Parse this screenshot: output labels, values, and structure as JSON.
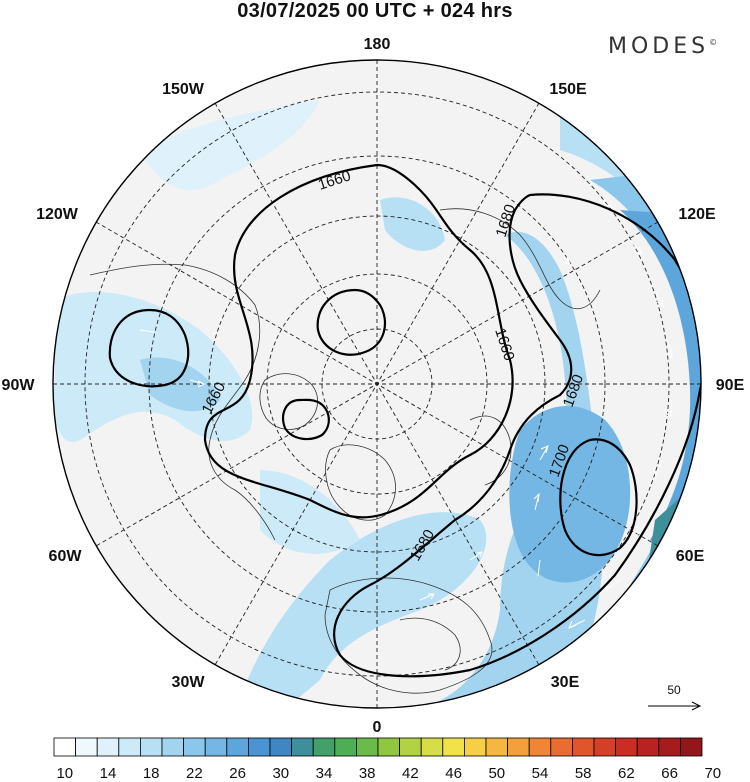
{
  "header": {
    "title": "03/07/2025  00 UTC  + 024 hrs",
    "brand": "MODES",
    "brand_mark": "©"
  },
  "map": {
    "projection": "north-polar-stereographic",
    "longitude_labels": [
      "180",
      "150E",
      "120E",
      "90E",
      "60E",
      "30E",
      "0",
      "30W",
      "60W",
      "90W",
      "120W",
      "150W"
    ],
    "contour_labels": [
      "1660",
      "1680",
      "1660",
      "1660",
      "1680",
      "1700",
      "1680"
    ],
    "reference_vector_label": "50",
    "colors": {
      "land_fill": "#f0f0f0",
      "coastline": "#333333",
      "contour": "#000000",
      "wind_arrow": "#ffffff"
    }
  },
  "colorbar": {
    "levels": [
      10,
      12,
      14,
      16,
      18,
      20,
      22,
      24,
      26,
      28,
      30,
      32,
      34,
      36,
      38,
      40,
      42,
      44,
      46,
      48,
      50,
      52,
      54,
      56,
      58,
      60,
      62,
      64,
      66,
      68,
      70
    ],
    "labels": [
      "10",
      "14",
      "18",
      "22",
      "26",
      "30",
      "34",
      "38",
      "42",
      "46",
      "50",
      "54",
      "58",
      "62",
      "66",
      "70"
    ],
    "colors": [
      "#ffffff",
      "#eef8fd",
      "#dff2fb",
      "#cdeaf8",
      "#b8e0f5",
      "#a2d4f0",
      "#8bc6eb",
      "#74b7e4",
      "#5da6dc",
      "#4a94d1",
      "#3f86c5",
      "#3f8f9a",
      "#44a06a",
      "#4eae55",
      "#6abb4a",
      "#8fc743",
      "#b3d243",
      "#d6dd46",
      "#f2e24a",
      "#f7cf47",
      "#f6b742",
      "#f39f3c",
      "#ef8636",
      "#e96d30",
      "#e1552b",
      "#d63f27",
      "#c92d24",
      "#b82221",
      "#a51c1d",
      "#921718"
    ]
  }
}
